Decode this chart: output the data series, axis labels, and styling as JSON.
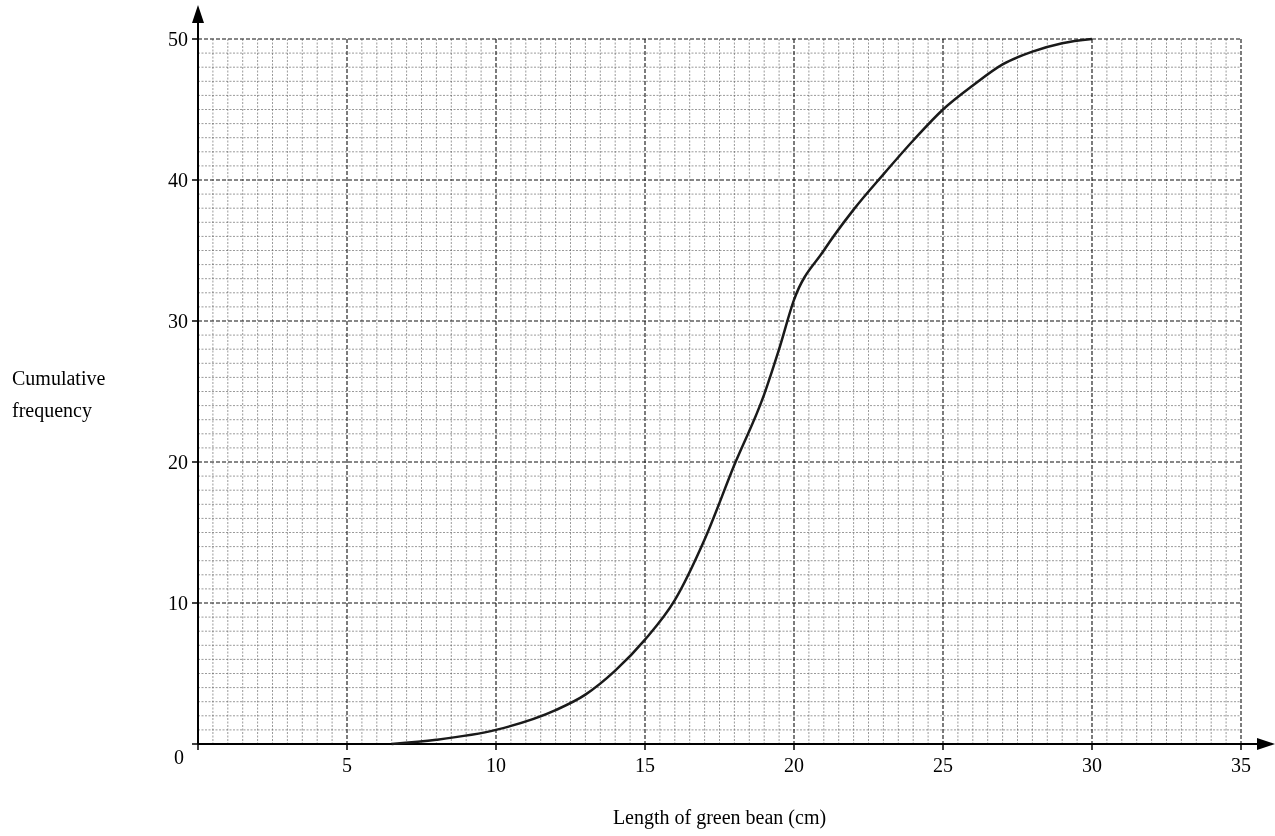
{
  "chart_data": {
    "type": "line",
    "xlabel": "Length of green bean (cm)",
    "ylabel": "Cumulative frequency",
    "xlim": [
      0,
      35
    ],
    "ylim": [
      0,
      50
    ],
    "xticks": [
      {
        "value": 0,
        "label": null
      },
      5,
      10,
      15,
      20,
      25,
      30,
      35
    ],
    "yticks": [
      0,
      10,
      20,
      30,
      40,
      50
    ],
    "grid": true,
    "marker": "none",
    "line_style": "solid",
    "series": [
      {
        "color": "#1a1a1a",
        "x": [
          6.5,
          8,
          10,
          12,
          13,
          14,
          15,
          16,
          17,
          18,
          19,
          19.5,
          20,
          21,
          22,
          23,
          24,
          25,
          26,
          27,
          28,
          29,
          30
        ],
        "values": [
          0,
          0.3,
          1,
          2.4,
          3.5,
          5.2,
          7.4,
          10.2,
          14.5,
          19.8,
          24.8,
          28,
          31.5,
          35,
          37.9,
          40.4,
          42.8,
          45,
          46.7,
          48.2,
          49.1,
          49.7,
          50
        ]
      }
    ]
  }
}
